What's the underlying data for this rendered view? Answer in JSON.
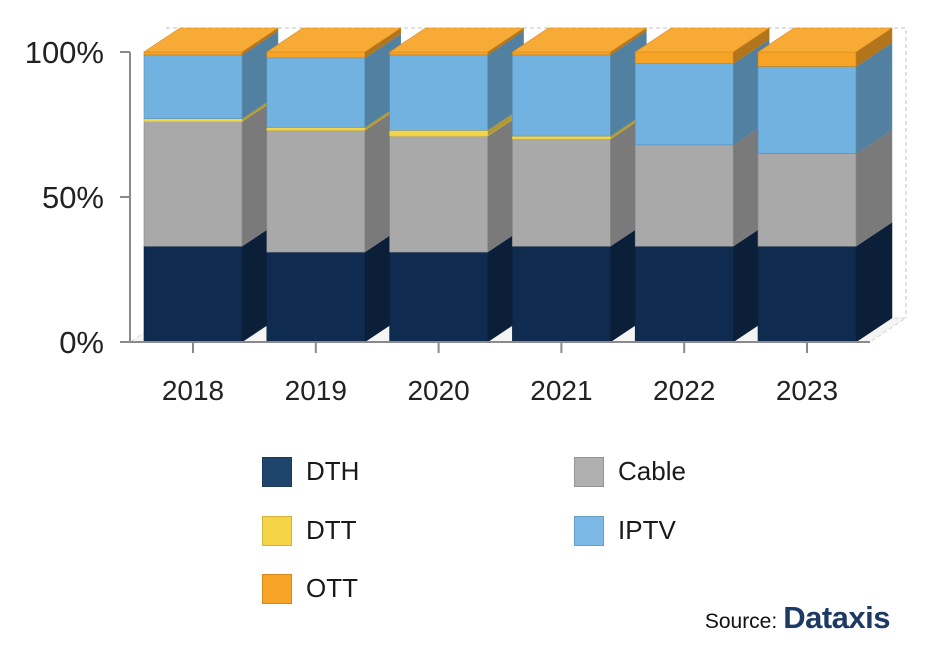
{
  "chart_data": {
    "type": "bar",
    "stacked": true,
    "style": "3d-100-percent-stacked",
    "categories": [
      "2018",
      "2019",
      "2020",
      "2021",
      "2022",
      "2023"
    ],
    "ylim": [
      0,
      100
    ],
    "yticks": [
      "0%",
      "50%",
      "100%"
    ],
    "grid": false,
    "legend_position": "bottom",
    "series": [
      {
        "name": "DTH",
        "color": "#0f2b4f",
        "values": [
          33,
          31,
          31,
          33,
          33,
          33
        ]
      },
      {
        "name": "Cable",
        "color": "#a8a9a8",
        "values": [
          43,
          42,
          40,
          37,
          35,
          32
        ]
      },
      {
        "name": "DTT",
        "color": "#f5d547",
        "values": [
          1,
          1,
          2,
          1,
          0,
          0
        ]
      },
      {
        "name": "IPTV",
        "color": "#72b2e0",
        "values": [
          22,
          24,
          26,
          28,
          28,
          30
        ]
      },
      {
        "name": "OTT",
        "color": "#f7a325",
        "values": [
          1,
          2,
          1,
          1,
          4,
          5
        ]
      }
    ]
  },
  "legend": [
    {
      "label": "DTH",
      "color": "#20456c"
    },
    {
      "label": "Cable",
      "color": "#b0b0b0"
    },
    {
      "label": "DTT",
      "color": "#f5d547"
    },
    {
      "label": "IPTV",
      "color": "#7db9e6"
    },
    {
      "label": "OTT",
      "color": "#f7a325"
    }
  ],
  "source": {
    "label": "Source:",
    "brand": "Dataxis"
  }
}
